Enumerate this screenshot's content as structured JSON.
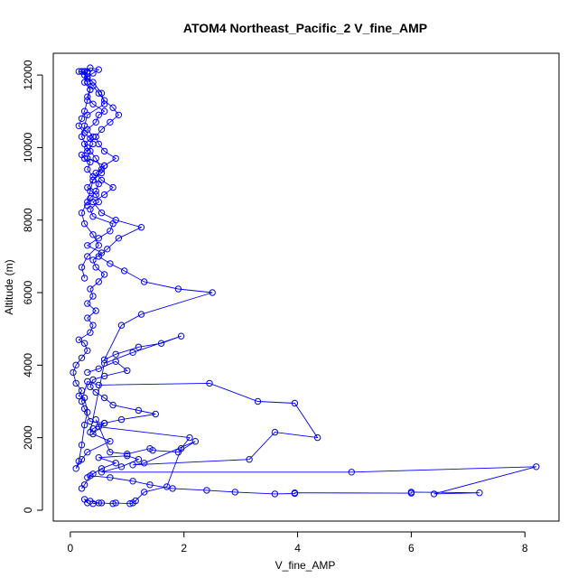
{
  "chart_data": {
    "type": "line",
    "title": "ATOM4 Northeast_Pacific_2 V_fine_AMP",
    "xlabel": "V_fine_AMP",
    "ylabel": "Altitude (m)",
    "xlim": [
      -0.3,
      8.6
    ],
    "ylim": [
      -300,
      12600
    ],
    "x_ticks": [
      0,
      2,
      4,
      6,
      8
    ],
    "x_tick_labels": [
      "0",
      "2",
      "4",
      "6",
      "8"
    ],
    "y_ticks": [
      0,
      2000,
      4000,
      6000,
      8000,
      10000,
      12000
    ],
    "y_tick_labels": [
      "0",
      "2000",
      "4000",
      "6000",
      "8000",
      "10000",
      "12000"
    ],
    "grid": false,
    "markers": "open-circle",
    "color": "#0000ff",
    "series": [
      {
        "x": [
          0.3,
          0.25,
          0.35,
          0.5,
          0.4,
          0.55,
          0.75,
          0.8,
          1.05,
          1.1,
          1.15,
          1.3,
          1.7,
          1.95,
          2.1,
          0.5,
          0.45,
          0.7,
          1.0,
          1.4,
          1.45,
          1.9,
          2.2,
          1.3,
          1.1,
          3.15,
          3.6,
          4.35,
          3.95,
          3.3,
          2.45,
          0.5,
          0.3,
          0.2,
          0.25,
          0.35,
          0.6,
          0.4,
          0.7,
          0.3,
          0.2,
          0.1,
          0.15,
          0.2,
          0.25,
          0.3,
          0.25,
          0.15,
          0.2,
          0.1,
          0.05,
          0.1,
          0.2,
          0.3,
          0.25,
          0.15,
          0.35,
          0.4,
          0.3,
          0.45,
          0.3,
          0.4,
          0.35,
          0.5,
          0.6,
          0.45,
          0.4,
          0.55,
          0.3,
          0.5,
          0.7,
          0.75,
          0.4,
          0.35,
          0.5,
          0.45,
          0.3,
          0.4,
          0.55,
          0.6,
          0.3,
          0.35,
          0.25,
          0.4,
          0.3,
          0.45,
          0.5,
          0.6,
          0.4,
          0.3,
          0.35,
          0.25,
          0.3,
          0.4,
          0.5,
          0.35,
          0.3,
          0.25,
          0.4,
          0.55,
          0.6,
          0.3,
          0.25,
          0.2,
          0.3,
          0.45,
          0.55,
          0.4,
          0.35,
          0.3,
          0.2,
          0.25,
          0.4,
          0.5,
          0.3,
          0.2,
          0.25
        ],
        "y": [
          200,
          300,
          250,
          200,
          180,
          200,
          180,
          200,
          180,
          200,
          260,
          500,
          650,
          1700,
          2000,
          2300,
          2500,
          1600,
          1550,
          1700,
          1650,
          1600,
          1900,
          1300,
          1250,
          1400,
          2150,
          2000,
          2950,
          3000,
          3500,
          3450,
          3550,
          3000,
          2800,
          2450,
          2400,
          2100,
          1900,
          1600,
          1400,
          1150,
          1350,
          1800,
          2350,
          2700,
          3100,
          3150,
          3300,
          3500,
          3800,
          4000,
          4200,
          4400,
          4600,
          4700,
          4900,
          5100,
          5300,
          5500,
          5700,
          5900,
          6100,
          6300,
          6500,
          6700,
          6900,
          7100,
          7300,
          7500,
          7700,
          7900,
          8100,
          8300,
          8500,
          8700,
          8900,
          9100,
          9300,
          9500,
          9700,
          9900,
          10100,
          10300,
          10500,
          10700,
          10900,
          11000,
          11200,
          11400,
          11600,
          11800,
          11950,
          12050,
          12150,
          12200,
          12100,
          12000,
          11800,
          11500,
          11200,
          10900,
          10600,
          10300,
          10000,
          9700,
          9400,
          9100,
          8800,
          8500,
          8200,
          7900,
          7600,
          7300,
          7000,
          6700,
          6400
        ]
      },
      {
        "x": [
          0.3,
          0.5,
          0.8,
          1.0,
          0.6,
          0.4,
          0.35,
          0.45,
          0.6,
          0.75,
          1.2,
          1.5,
          0.9,
          0.6,
          0.4,
          0.35,
          0.6,
          1.1,
          1.95,
          1.6,
          1.2,
          0.8,
          0.6,
          0.9,
          1.25,
          2.5,
          1.9,
          1.3,
          0.95,
          0.7,
          0.5,
          0.65,
          0.85,
          1.25,
          0.8,
          0.55,
          0.4,
          0.6,
          0.75,
          0.55,
          0.45,
          0.6,
          0.8,
          0.6,
          0.5,
          0.45,
          0.55,
          0.7,
          0.85,
          0.75,
          0.6,
          0.5,
          0.4,
          0.3,
          0.25
        ],
        "y": [
          3800,
          3900,
          4100,
          3850,
          3700,
          3600,
          3400,
          3250,
          3100,
          2900,
          2750,
          2650,
          2500,
          2400,
          2250,
          2150,
          4050,
          4350,
          4800,
          4600,
          4500,
          4300,
          4150,
          5100,
          5400,
          6000,
          6100,
          6300,
          6600,
          6800,
          7000,
          7200,
          7500,
          7800,
          8000,
          8200,
          8500,
          8700,
          8900,
          9100,
          9300,
          9500,
          9700,
          9900,
          10100,
          10300,
          10500,
          10700,
          10900,
          11100,
          11300,
          11500,
          11700,
          11900,
          12100
        ]
      },
      {
        "x": [
          0.3,
          0.4,
          0.55,
          0.8,
          0.5,
          1.0,
          1.2,
          0.9,
          0.55,
          4.95,
          8.2,
          6.4,
          7.2,
          6.0,
          6.0,
          3.95,
          3.95,
          3.6,
          2.9,
          2.4,
          1.8,
          1.4,
          1.1,
          0.7,
          0.35,
          0.25,
          0.2
        ],
        "y": [
          900,
          1000,
          1150,
          1300,
          1450,
          1500,
          1400,
          1200,
          1050,
          1050,
          1200,
          450,
          480,
          500,
          470,
          480,
          460,
          450,
          500,
          550,
          600,
          700,
          800,
          900,
          950,
          700,
          600
        ]
      },
      {
        "x": [
          0.2,
          0.25,
          0.3,
          0.15,
          0.2,
          0.25,
          0.3,
          0.35,
          0.3,
          0.25,
          0.2,
          0.15,
          0.25,
          0.35,
          0.4,
          0.3,
          0.2,
          0.25,
          0.35,
          0.3,
          0.4,
          0.5,
          0.45,
          0.35,
          0.3
        ],
        "y": [
          12100,
          12100,
          12050,
          12100,
          12100,
          12100,
          11800,
          11600,
          11300,
          11000,
          10800,
          10600,
          10400,
          10250,
          10100,
          9900,
          9800,
          9700,
          9600,
          9400,
          9200,
          9000,
          8800,
          8600,
          8400
        ]
      }
    ]
  }
}
